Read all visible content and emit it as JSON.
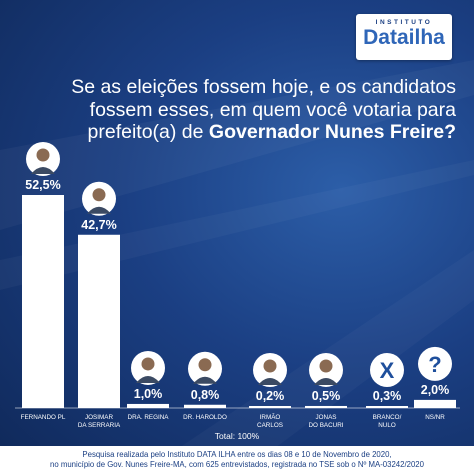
{
  "logo": {
    "small": "INSTITUTO",
    "main": "Datailha"
  },
  "question": {
    "line1": "Se as eleições fossem hoje, e os candidatos",
    "line2": "fossem esses, em quem você votaria para",
    "line3_prefix": "prefeito(a) de ",
    "line3_bold": "Governador  Nunes Freire?"
  },
  "total": "Total: 100%",
  "footer": {
    "line1": "Pesquisa realizada pelo Instituto DATA ILHA entre os dias 08 e 10 de Novembro de 2020,",
    "line2": "no município de Gov. Nunes Freire-MA, com  625 entrevistados, registrada no TSE sob o Nº MA-03242/2020"
  },
  "colors": {
    "bar": "#ffffff",
    "background": "#1b3f83",
    "text": "#ffffff",
    "icon_circle": "#1f4f9c"
  },
  "chart_data": {
    "type": "bar",
    "categories": [
      [
        "FERNANDO PL"
      ],
      [
        "JOSIMAR",
        "DA SERRARIA"
      ],
      [
        "DRA. REGINA"
      ],
      [
        "DR. HAROLDO"
      ],
      [
        "IRMÃO",
        "CARLOS"
      ],
      [
        "JONAS",
        "DO BACURI"
      ],
      [
        "BRANCO/",
        "NULO"
      ],
      [
        "NS/NR"
      ]
    ],
    "values": [
      52.5,
      42.7,
      1.0,
      0.8,
      0.2,
      0.5,
      0.3,
      2.0
    ],
    "labels": [
      "52,5%",
      "42,7%",
      "1,0%",
      "0,8%",
      "0,2%",
      "0,5%",
      "0,3%",
      "2,0%"
    ],
    "icons": [
      "photo",
      "photo",
      "photo",
      "photo",
      "photo",
      "photo",
      "x-icon",
      "question-icon"
    ],
    "ylim": [
      0,
      52.5
    ]
  }
}
